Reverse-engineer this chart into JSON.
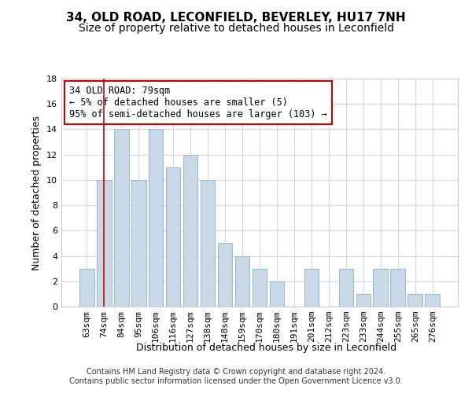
{
  "title1": "34, OLD ROAD, LECONFIELD, BEVERLEY, HU17 7NH",
  "title2": "Size of property relative to detached houses in Leconfield",
  "xlabel": "Distribution of detached houses by size in Leconfield",
  "ylabel": "Number of detached properties",
  "categories": [
    "63sqm",
    "74sqm",
    "84sqm",
    "95sqm",
    "106sqm",
    "116sqm",
    "127sqm",
    "138sqm",
    "148sqm",
    "159sqm",
    "170sqm",
    "180sqm",
    "191sqm",
    "201sqm",
    "212sqm",
    "223sqm",
    "233sqm",
    "244sqm",
    "255sqm",
    "265sqm",
    "276sqm"
  ],
  "values": [
    3,
    10,
    14,
    10,
    14,
    11,
    12,
    10,
    5,
    4,
    3,
    2,
    0,
    3,
    0,
    3,
    1,
    3,
    3,
    1,
    1
  ],
  "bar_color": "#c9d9e8",
  "bar_edge_color": "#a0b8cc",
  "grid_color": "#d0d8e8",
  "vline_x": 1,
  "vline_color": "#cc0000",
  "annotation_text": "34 OLD ROAD: 79sqm\n← 5% of detached houses are smaller (5)\n95% of semi-detached houses are larger (103) →",
  "annotation_box_color": "#ffffff",
  "annotation_box_edge": "#cc0000",
  "ylim": [
    0,
    18
  ],
  "yticks": [
    0,
    2,
    4,
    6,
    8,
    10,
    12,
    14,
    16,
    18
  ],
  "footer_text": "Contains HM Land Registry data © Crown copyright and database right 2024.\nContains public sector information licensed under the Open Government Licence v3.0.",
  "title1_fontsize": 11,
  "title2_fontsize": 10,
  "axis_label_fontsize": 9,
  "tick_fontsize": 8,
  "annotation_fontsize": 8.5,
  "footer_fontsize": 7
}
